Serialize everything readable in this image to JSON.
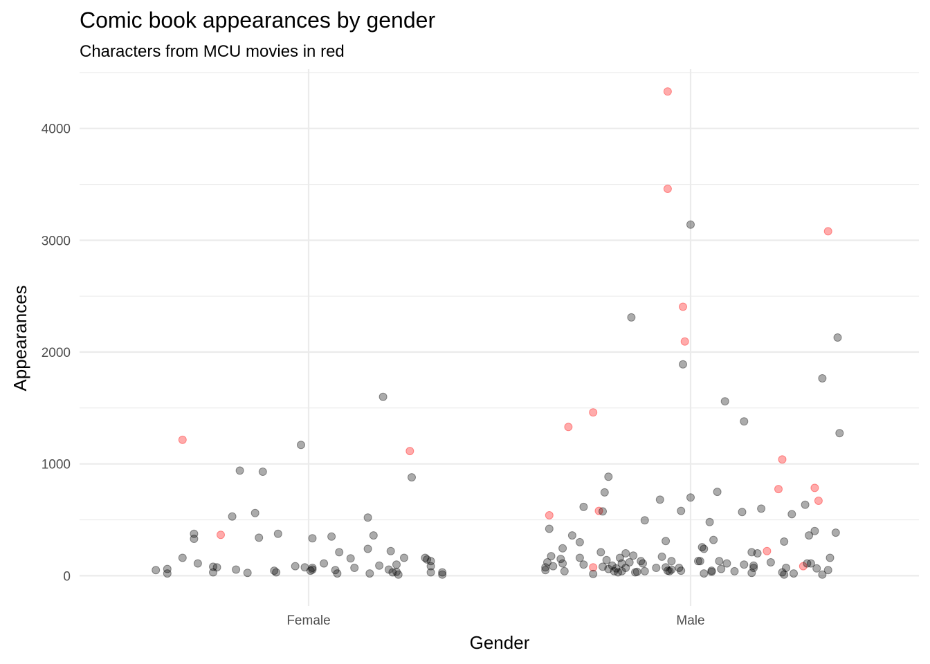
{
  "chart_data": {
    "type": "scatter",
    "title": "Comic book appearances by gender",
    "subtitle": "Characters from MCU movies in red",
    "xlabel": "Gender",
    "ylabel": "Appearances",
    "categories": [
      "Female",
      "Male"
    ],
    "ylim": [
      -270,
      4530
    ],
    "yticks": [
      0,
      1000,
      2000,
      3000,
      4000
    ],
    "grid": true,
    "colors": {
      "mcu": "#ff0000",
      "other": "#000000",
      "grid": "#ebebeb",
      "tick_text": "#4d4d4d"
    },
    "point_alpha": 0.33,
    "series": [
      {
        "group": "Female",
        "points": [
          {
            "x": -0.4,
            "y": 50,
            "mcu": false
          },
          {
            "x": -0.37,
            "y": 60,
            "mcu": false
          },
          {
            "x": -0.37,
            "y": 20,
            "mcu": false
          },
          {
            "x": -0.33,
            "y": 1215,
            "mcu": true
          },
          {
            "x": -0.33,
            "y": 160,
            "mcu": false
          },
          {
            "x": -0.3,
            "y": 375,
            "mcu": false
          },
          {
            "x": -0.3,
            "y": 330,
            "mcu": false
          },
          {
            "x": -0.29,
            "y": 110,
            "mcu": false
          },
          {
            "x": -0.25,
            "y": 30,
            "mcu": false
          },
          {
            "x": -0.24,
            "y": 75,
            "mcu": false
          },
          {
            "x": -0.25,
            "y": 80,
            "mcu": false
          },
          {
            "x": -0.23,
            "y": 365,
            "mcu": true
          },
          {
            "x": -0.2,
            "y": 530,
            "mcu": false
          },
          {
            "x": -0.19,
            "y": 55,
            "mcu": false
          },
          {
            "x": -0.18,
            "y": 940,
            "mcu": false
          },
          {
            "x": -0.16,
            "y": 25,
            "mcu": false
          },
          {
            "x": -0.14,
            "y": 560,
            "mcu": false
          },
          {
            "x": -0.13,
            "y": 340,
            "mcu": false
          },
          {
            "x": -0.12,
            "y": 930,
            "mcu": false
          },
          {
            "x": -0.09,
            "y": 45,
            "mcu": false
          },
          {
            "x": -0.085,
            "y": 30,
            "mcu": false
          },
          {
            "x": -0.08,
            "y": 375,
            "mcu": false
          },
          {
            "x": -0.035,
            "y": 85,
            "mcu": false
          },
          {
            "x": -0.02,
            "y": 1170,
            "mcu": false
          },
          {
            "x": -0.01,
            "y": 75,
            "mcu": false
          },
          {
            "x": 0.005,
            "y": 45,
            "mcu": false
          },
          {
            "x": 0.01,
            "y": 55,
            "mcu": false
          },
          {
            "x": 0.01,
            "y": 70,
            "mcu": false
          },
          {
            "x": 0.01,
            "y": 335,
            "mcu": false
          },
          {
            "x": 0.04,
            "y": 110,
            "mcu": false
          },
          {
            "x": 0.06,
            "y": 350,
            "mcu": false
          },
          {
            "x": 0.07,
            "y": 50,
            "mcu": false
          },
          {
            "x": 0.075,
            "y": 20,
            "mcu": false
          },
          {
            "x": 0.08,
            "y": 210,
            "mcu": false
          },
          {
            "x": 0.11,
            "y": 155,
            "mcu": false
          },
          {
            "x": 0.12,
            "y": 70,
            "mcu": false
          },
          {
            "x": 0.155,
            "y": 520,
            "mcu": false
          },
          {
            "x": 0.155,
            "y": 240,
            "mcu": false
          },
          {
            "x": 0.16,
            "y": 20,
            "mcu": false
          },
          {
            "x": 0.17,
            "y": 360,
            "mcu": false
          },
          {
            "x": 0.185,
            "y": 90,
            "mcu": false
          },
          {
            "x": 0.195,
            "y": 1600,
            "mcu": false
          },
          {
            "x": 0.21,
            "y": 55,
            "mcu": false
          },
          {
            "x": 0.215,
            "y": 220,
            "mcu": false
          },
          {
            "x": 0.22,
            "y": 30,
            "mcu": false
          },
          {
            "x": 0.23,
            "y": 100,
            "mcu": false
          },
          {
            "x": 0.23,
            "y": 35,
            "mcu": false
          },
          {
            "x": 0.235,
            "y": 10,
            "mcu": false
          },
          {
            "x": 0.25,
            "y": 160,
            "mcu": false
          },
          {
            "x": 0.265,
            "y": 1115,
            "mcu": true
          },
          {
            "x": 0.27,
            "y": 880,
            "mcu": false
          },
          {
            "x": 0.305,
            "y": 160,
            "mcu": false
          },
          {
            "x": 0.31,
            "y": 145,
            "mcu": false
          },
          {
            "x": 0.32,
            "y": 130,
            "mcu": false
          },
          {
            "x": 0.32,
            "y": 85,
            "mcu": false
          },
          {
            "x": 0.32,
            "y": 30,
            "mcu": false
          },
          {
            "x": 0.35,
            "y": 30,
            "mcu": false
          },
          {
            "x": 0.35,
            "y": 10,
            "mcu": false
          }
        ]
      },
      {
        "group": "Male",
        "points": [
          {
            "x": -0.38,
            "y": 75,
            "mcu": false
          },
          {
            "x": -0.38,
            "y": 50,
            "mcu": false
          },
          {
            "x": -0.375,
            "y": 120,
            "mcu": false
          },
          {
            "x": -0.37,
            "y": 540,
            "mcu": true
          },
          {
            "x": -0.37,
            "y": 420,
            "mcu": false
          },
          {
            "x": -0.365,
            "y": 175,
            "mcu": false
          },
          {
            "x": -0.36,
            "y": 85,
            "mcu": false
          },
          {
            "x": -0.34,
            "y": 150,
            "mcu": false
          },
          {
            "x": -0.335,
            "y": 245,
            "mcu": false
          },
          {
            "x": -0.335,
            "y": 110,
            "mcu": false
          },
          {
            "x": -0.33,
            "y": 40,
            "mcu": false
          },
          {
            "x": -0.32,
            "y": 1330,
            "mcu": true
          },
          {
            "x": -0.31,
            "y": 360,
            "mcu": false
          },
          {
            "x": -0.29,
            "y": 300,
            "mcu": false
          },
          {
            "x": -0.29,
            "y": 160,
            "mcu": false
          },
          {
            "x": -0.28,
            "y": 615,
            "mcu": false
          },
          {
            "x": -0.28,
            "y": 100,
            "mcu": false
          },
          {
            "x": -0.255,
            "y": 1460,
            "mcu": true
          },
          {
            "x": -0.255,
            "y": 75,
            "mcu": true
          },
          {
            "x": -0.255,
            "y": 15,
            "mcu": false
          },
          {
            "x": -0.24,
            "y": 580,
            "mcu": true
          },
          {
            "x": -0.23,
            "y": 575,
            "mcu": false
          },
          {
            "x": -0.235,
            "y": 210,
            "mcu": false
          },
          {
            "x": -0.23,
            "y": 80,
            "mcu": false
          },
          {
            "x": -0.225,
            "y": 745,
            "mcu": false
          },
          {
            "x": -0.215,
            "y": 885,
            "mcu": false
          },
          {
            "x": -0.22,
            "y": 140,
            "mcu": false
          },
          {
            "x": -0.215,
            "y": 60,
            "mcu": false
          },
          {
            "x": -0.205,
            "y": 90,
            "mcu": false
          },
          {
            "x": -0.2,
            "y": 40,
            "mcu": false
          },
          {
            "x": -0.195,
            "y": 65,
            "mcu": false
          },
          {
            "x": -0.19,
            "y": 30,
            "mcu": false
          },
          {
            "x": -0.185,
            "y": 160,
            "mcu": false
          },
          {
            "x": -0.18,
            "y": 110,
            "mcu": false
          },
          {
            "x": -0.18,
            "y": 40,
            "mcu": false
          },
          {
            "x": -0.17,
            "y": 200,
            "mcu": false
          },
          {
            "x": -0.17,
            "y": 70,
            "mcu": false
          },
          {
            "x": -0.16,
            "y": 120,
            "mcu": false
          },
          {
            "x": -0.155,
            "y": 2310,
            "mcu": false
          },
          {
            "x": -0.15,
            "y": 180,
            "mcu": false
          },
          {
            "x": -0.145,
            "y": 30,
            "mcu": false
          },
          {
            "x": -0.14,
            "y": 35,
            "mcu": false
          },
          {
            "x": -0.13,
            "y": 130,
            "mcu": false
          },
          {
            "x": -0.125,
            "y": 110,
            "mcu": false
          },
          {
            "x": -0.12,
            "y": 40,
            "mcu": false
          },
          {
            "x": -0.12,
            "y": 495,
            "mcu": false
          },
          {
            "x": -0.09,
            "y": 70,
            "mcu": false
          },
          {
            "x": -0.08,
            "y": 680,
            "mcu": false
          },
          {
            "x": -0.075,
            "y": 170,
            "mcu": false
          },
          {
            "x": -0.06,
            "y": 4330,
            "mcu": true
          },
          {
            "x": -0.06,
            "y": 3460,
            "mcu": true
          },
          {
            "x": -0.065,
            "y": 310,
            "mcu": false
          },
          {
            "x": -0.065,
            "y": 75,
            "mcu": false
          },
          {
            "x": -0.06,
            "y": 45,
            "mcu": false
          },
          {
            "x": -0.055,
            "y": 40,
            "mcu": false
          },
          {
            "x": -0.05,
            "y": 130,
            "mcu": false
          },
          {
            "x": -0.05,
            "y": 55,
            "mcu": false
          },
          {
            "x": -0.03,
            "y": 70,
            "mcu": false
          },
          {
            "x": -0.025,
            "y": 45,
            "mcu": false
          },
          {
            "x": -0.025,
            "y": 580,
            "mcu": false
          },
          {
            "x": -0.02,
            "y": 2405,
            "mcu": true
          },
          {
            "x": -0.02,
            "y": 1890,
            "mcu": false
          },
          {
            "x": -0.015,
            "y": 2095,
            "mcu": true
          },
          {
            "x": 0.0,
            "y": 3140,
            "mcu": false
          },
          {
            "x": 0.0,
            "y": 700,
            "mcu": false
          },
          {
            "x": 0.02,
            "y": 130,
            "mcu": false
          },
          {
            "x": 0.025,
            "y": 130,
            "mcu": false
          },
          {
            "x": 0.03,
            "y": 255,
            "mcu": false
          },
          {
            "x": 0.035,
            "y": 240,
            "mcu": false
          },
          {
            "x": 0.035,
            "y": 20,
            "mcu": false
          },
          {
            "x": 0.05,
            "y": 480,
            "mcu": false
          },
          {
            "x": 0.055,
            "y": 45,
            "mcu": false
          },
          {
            "x": 0.055,
            "y": 35,
            "mcu": false
          },
          {
            "x": 0.06,
            "y": 320,
            "mcu": false
          },
          {
            "x": 0.07,
            "y": 750,
            "mcu": false
          },
          {
            "x": 0.075,
            "y": 130,
            "mcu": false
          },
          {
            "x": 0.08,
            "y": 60,
            "mcu": false
          },
          {
            "x": 0.09,
            "y": 1560,
            "mcu": false
          },
          {
            "x": 0.095,
            "y": 110,
            "mcu": false
          },
          {
            "x": 0.115,
            "y": 40,
            "mcu": false
          },
          {
            "x": 0.135,
            "y": 570,
            "mcu": false
          },
          {
            "x": 0.14,
            "y": 1380,
            "mcu": false
          },
          {
            "x": 0.14,
            "y": 100,
            "mcu": false
          },
          {
            "x": 0.16,
            "y": 210,
            "mcu": false
          },
          {
            "x": 0.165,
            "y": 90,
            "mcu": false
          },
          {
            "x": 0.16,
            "y": 25,
            "mcu": false
          },
          {
            "x": 0.165,
            "y": 70,
            "mcu": false
          },
          {
            "x": 0.175,
            "y": 200,
            "mcu": false
          },
          {
            "x": 0.185,
            "y": 600,
            "mcu": false
          },
          {
            "x": 0.2,
            "y": 220,
            "mcu": true
          },
          {
            "x": 0.21,
            "y": 120,
            "mcu": false
          },
          {
            "x": 0.23,
            "y": 775,
            "mcu": true
          },
          {
            "x": 0.24,
            "y": 1040,
            "mcu": true
          },
          {
            "x": 0.245,
            "y": 305,
            "mcu": false
          },
          {
            "x": 0.24,
            "y": 30,
            "mcu": false
          },
          {
            "x": 0.245,
            "y": 10,
            "mcu": false
          },
          {
            "x": 0.25,
            "y": 70,
            "mcu": false
          },
          {
            "x": 0.265,
            "y": 550,
            "mcu": false
          },
          {
            "x": 0.27,
            "y": 20,
            "mcu": false
          },
          {
            "x": 0.3,
            "y": 635,
            "mcu": false
          },
          {
            "x": 0.295,
            "y": 85,
            "mcu": true
          },
          {
            "x": 0.305,
            "y": 110,
            "mcu": false
          },
          {
            "x": 0.31,
            "y": 360,
            "mcu": false
          },
          {
            "x": 0.315,
            "y": 110,
            "mcu": false
          },
          {
            "x": 0.325,
            "y": 400,
            "mcu": false
          },
          {
            "x": 0.325,
            "y": 785,
            "mcu": true
          },
          {
            "x": 0.33,
            "y": 65,
            "mcu": false
          },
          {
            "x": 0.335,
            "y": 670,
            "mcu": true
          },
          {
            "x": 0.345,
            "y": 1765,
            "mcu": false
          },
          {
            "x": 0.345,
            "y": 10,
            "mcu": false
          },
          {
            "x": 0.36,
            "y": 3080,
            "mcu": true
          },
          {
            "x": 0.36,
            "y": 50,
            "mcu": false
          },
          {
            "x": 0.365,
            "y": 160,
            "mcu": false
          },
          {
            "x": 0.38,
            "y": 385,
            "mcu": false
          },
          {
            "x": 0.385,
            "y": 2130,
            "mcu": false
          },
          {
            "x": 0.39,
            "y": 1275,
            "mcu": false
          }
        ]
      }
    ]
  }
}
